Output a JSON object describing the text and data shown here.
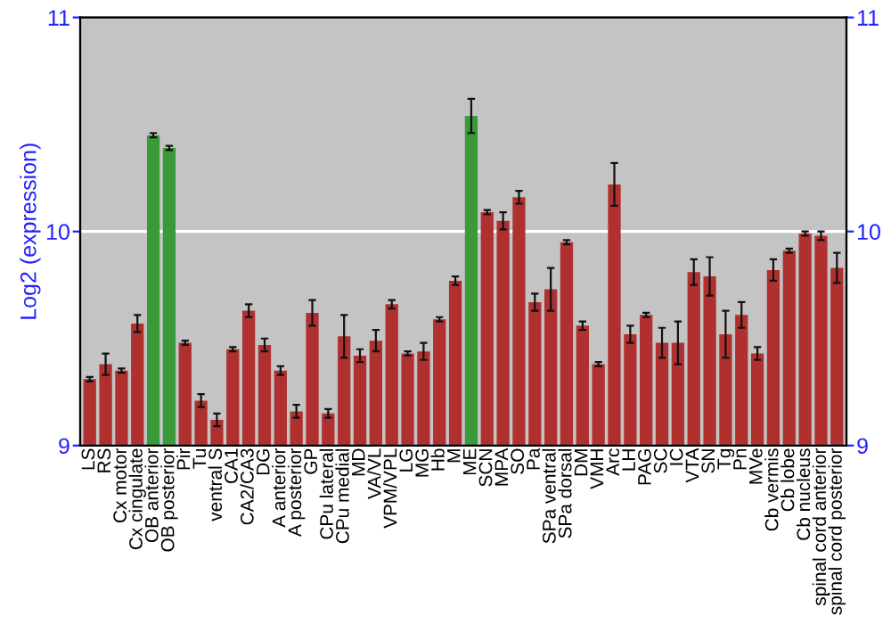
{
  "chart_data": {
    "type": "bar",
    "ylabel": "Log2 (expression)",
    "categories": [
      "LS",
      "RS",
      "Cx motor",
      "Cx cingulate",
      "OB anterior",
      "OB posterior",
      "Pir",
      "Tu",
      "ventral S",
      "CA1",
      "CA2/CA3",
      "DG",
      "A anterior",
      "A posterior",
      "GP",
      "CPu lateral",
      "CPu medial",
      "MD",
      "VA/VL",
      "VPM/VPL",
      "LG",
      "MG",
      "Hb",
      "M",
      "ME",
      "SCN",
      "MPA",
      "SO",
      "Pa",
      "SPa ventral",
      "SPa dorsal",
      "DM",
      "VMH",
      "Arc",
      "LH",
      "PAG",
      "SC",
      "IC",
      "VTA",
      "SN",
      "Tg",
      "Pn",
      "MVe",
      "Cb vermis",
      "Cb lobe",
      "Cb nucleus",
      "spinal cord anterior",
      "spinal cord posterior"
    ],
    "values": [
      9.31,
      9.38,
      9.35,
      9.57,
      10.45,
      10.39,
      9.48,
      9.21,
      9.12,
      9.45,
      9.63,
      9.47,
      9.35,
      9.16,
      9.62,
      9.15,
      9.51,
      9.42,
      9.49,
      9.66,
      9.43,
      9.44,
      9.59,
      9.77,
      10.54,
      10.09,
      10.05,
      10.16,
      9.67,
      9.73,
      9.95,
      9.56,
      9.38,
      10.22,
      9.52,
      9.61,
      9.48,
      9.48,
      9.81,
      9.79,
      9.52,
      9.61,
      9.43,
      9.82,
      9.91,
      9.99,
      9.98,
      9.83
    ],
    "errors": [
      0.01,
      0.05,
      0.01,
      0.04,
      0.01,
      0.01,
      0.01,
      0.03,
      0.03,
      0.01,
      0.03,
      0.03,
      0.02,
      0.03,
      0.06,
      0.02,
      0.1,
      0.03,
      0.05,
      0.02,
      0.01,
      0.04,
      0.01,
      0.02,
      0.08,
      0.01,
      0.04,
      0.03,
      0.04,
      0.1,
      0.01,
      0.02,
      0.01,
      0.1,
      0.04,
      0.01,
      0.07,
      0.1,
      0.06,
      0.09,
      0.11,
      0.06,
      0.03,
      0.05,
      0.01,
      0.01,
      0.02,
      0.07
    ],
    "colors": [
      "#b03030",
      "#b03030",
      "#b03030",
      "#b03030",
      "#3a9a3a",
      "#3a9a3a",
      "#b03030",
      "#b03030",
      "#b03030",
      "#b03030",
      "#b03030",
      "#b03030",
      "#b03030",
      "#b03030",
      "#b03030",
      "#b03030",
      "#b03030",
      "#b03030",
      "#b03030",
      "#b03030",
      "#b03030",
      "#b03030",
      "#b03030",
      "#b03030",
      "#3a9a3a",
      "#b03030",
      "#b03030",
      "#b03030",
      "#b03030",
      "#b03030",
      "#b03030",
      "#b03030",
      "#b03030",
      "#b03030",
      "#b03030",
      "#b03030",
      "#b03030",
      "#b03030",
      "#b03030",
      "#b03030",
      "#b03030",
      "#b03030",
      "#b03030",
      "#b03030",
      "#b03030",
      "#b03030",
      "#b03030",
      "#b03030"
    ],
    "ylim": [
      9,
      11
    ],
    "yticks": [
      9,
      10,
      11
    ],
    "y2lim": [
      9,
      11
    ],
    "y2ticks": [
      9,
      10,
      11
    ],
    "grid": "y"
  }
}
